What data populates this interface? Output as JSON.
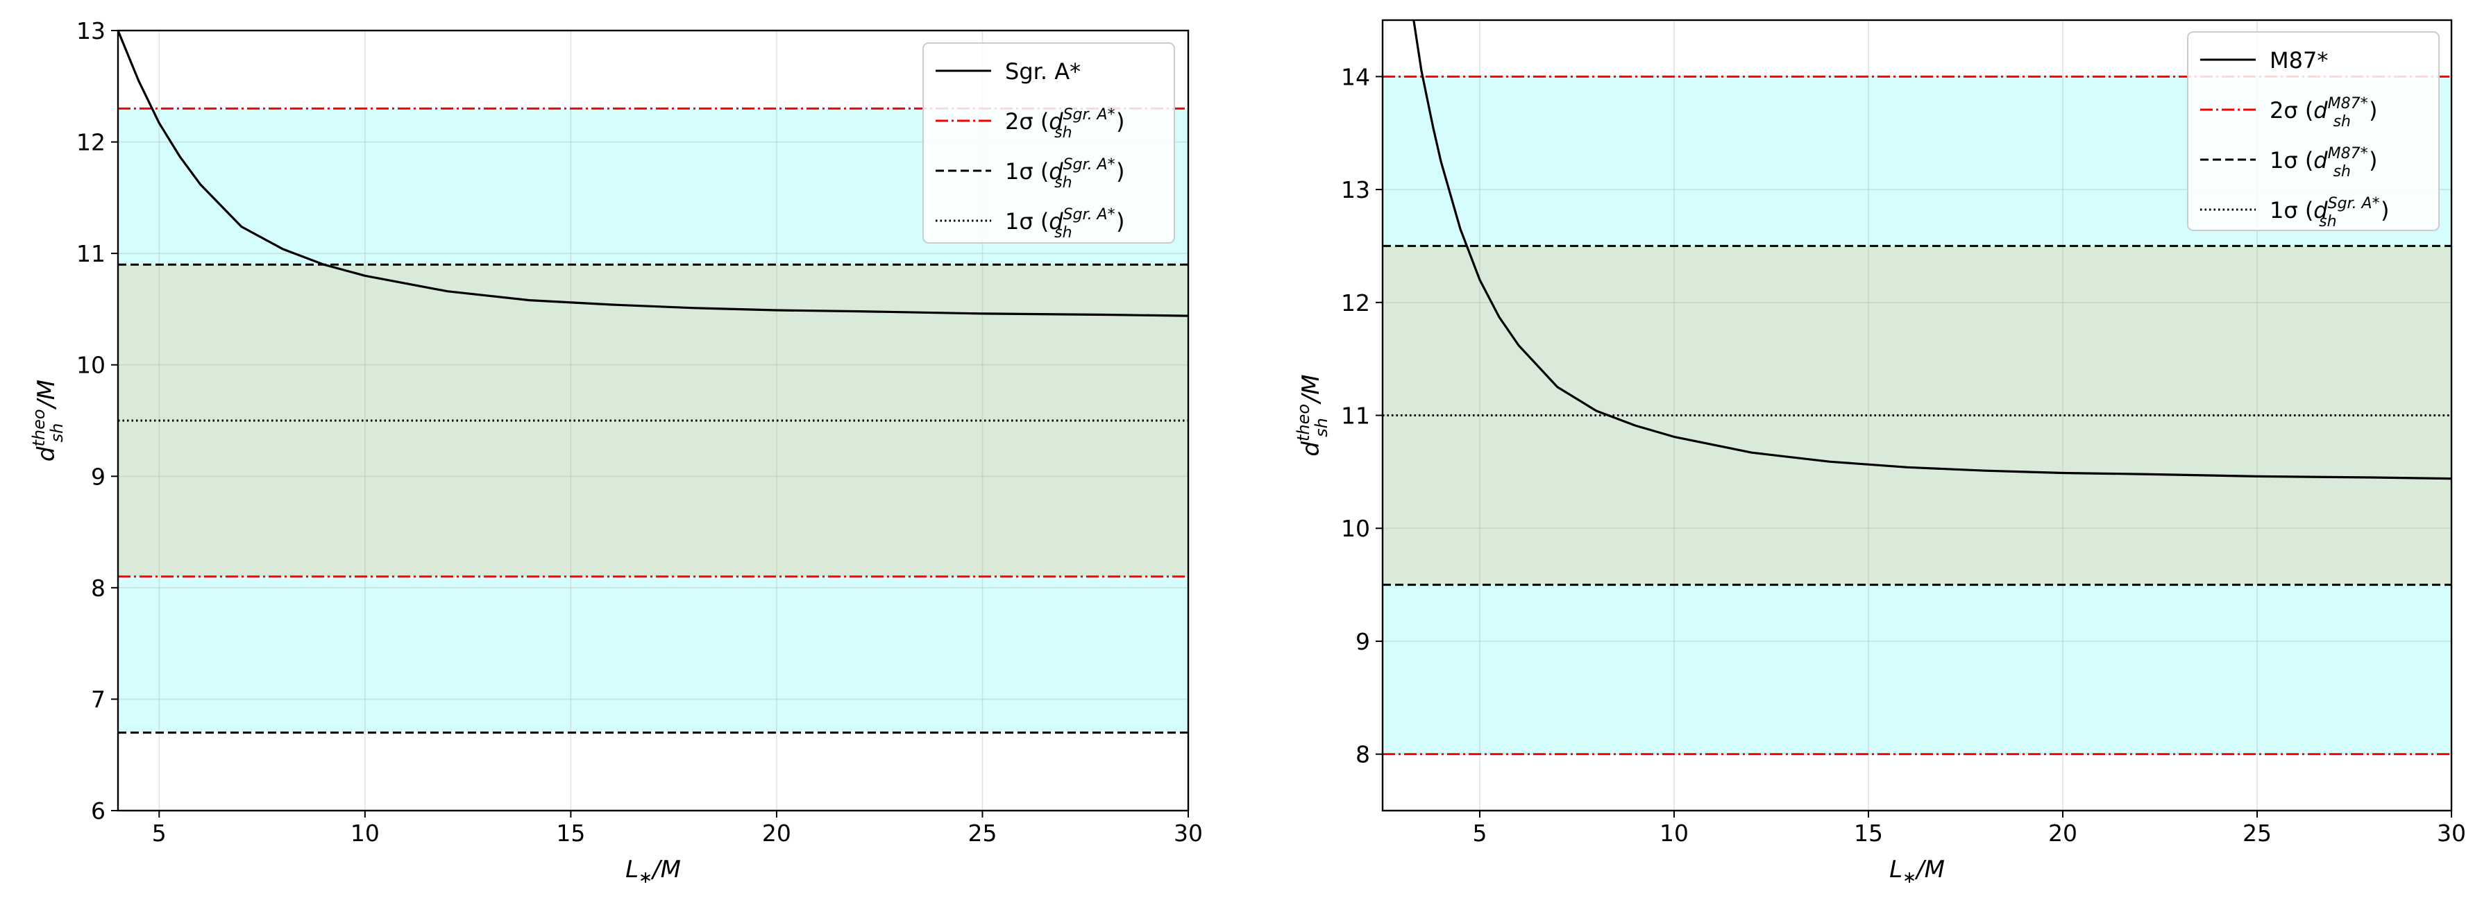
{
  "chart_data": [
    {
      "type": "line",
      "title": "",
      "xlabel": "L_*/M",
      "ylabel": "d_sh^theo/M",
      "xlim": [
        4,
        30
      ],
      "ylim": [
        6,
        13
      ],
      "xticks": [
        5,
        10,
        15,
        20,
        25,
        30
      ],
      "yticks": [
        6,
        7,
        8,
        9,
        10,
        11,
        12,
        13
      ],
      "grid": true,
      "legend_position": "top-right",
      "bands": [
        {
          "y0": 6.7,
          "y1": 12.3,
          "color": "#d6fdfd"
        },
        {
          "y0": 8.1,
          "y1": 10.9,
          "color": "#d9ebd8"
        }
      ],
      "hlines": [
        {
          "y": 12.3,
          "style": "dashdot",
          "color": "#ff0000"
        },
        {
          "y": 8.1,
          "style": "dashdot",
          "color": "#ff0000"
        },
        {
          "y": 10.9,
          "style": "dashed",
          "color": "#000000"
        },
        {
          "y": 6.7,
          "style": "dashed",
          "color": "#000000"
        },
        {
          "y": 9.5,
          "style": "dotted",
          "color": "#000000"
        }
      ],
      "series": [
        {
          "name": "Sgr. A*",
          "color": "#000000",
          "x": [
            4,
            4.5,
            5,
            5.5,
            6,
            7,
            8,
            9,
            10,
            12,
            14,
            16,
            18,
            20,
            22,
            25,
            28,
            30
          ],
          "y": [
            13.0,
            12.55,
            12.17,
            11.87,
            11.62,
            11.24,
            11.04,
            10.9,
            10.8,
            10.66,
            10.58,
            10.54,
            10.51,
            10.49,
            10.48,
            10.46,
            10.45,
            10.44
          ]
        }
      ],
      "legend": [
        {
          "style": "solid",
          "color": "#000000",
          "label": "Sgr. A*"
        },
        {
          "style": "dashdot",
          "color": "#ff0000",
          "sigma": "2σ",
          "sup": "Sgr. A*"
        },
        {
          "style": "dashed",
          "color": "#000000",
          "sigma": "1σ",
          "sup": "Sgr. A*"
        },
        {
          "style": "dotted",
          "color": "#000000",
          "sigma": "1σ",
          "sup": "Sgr. A*"
        }
      ]
    },
    {
      "type": "line",
      "title": "",
      "xlabel": "L_*/M",
      "ylabel": "d_sh^theo/M",
      "xlim": [
        2.5,
        30
      ],
      "ylim": [
        7.5,
        14.5
      ],
      "xticks": [
        5,
        10,
        15,
        20,
        25,
        30
      ],
      "yticks": [
        8,
        9,
        10,
        11,
        12,
        13,
        14
      ],
      "grid": true,
      "legend_position": "top-right",
      "bands": [
        {
          "y0": 8.0,
          "y1": 14.0,
          "color": "#d6fdfd"
        },
        {
          "y0": 9.5,
          "y1": 12.5,
          "color": "#d9ebd8"
        }
      ],
      "hlines": [
        {
          "y": 14.0,
          "style": "dashdot",
          "color": "#ff0000"
        },
        {
          "y": 8.0,
          "style": "dashdot",
          "color": "#ff0000"
        },
        {
          "y": 12.5,
          "style": "dashed",
          "color": "#000000"
        },
        {
          "y": 9.5,
          "style": "dashed",
          "color": "#000000"
        },
        {
          "y": 11.0,
          "style": "dotted",
          "color": "#000000"
        }
      ],
      "series": [
        {
          "name": "M87*",
          "color": "#000000",
          "x": [
            3.3,
            3.5,
            3.8,
            4,
            4.5,
            5,
            5.5,
            6,
            7,
            8,
            9,
            10,
            12,
            14,
            16,
            18,
            20,
            22,
            25,
            28,
            30
          ],
          "y": [
            14.5,
            14.05,
            13.55,
            13.25,
            12.65,
            12.2,
            11.87,
            11.62,
            11.25,
            11.04,
            10.91,
            10.81,
            10.67,
            10.59,
            10.54,
            10.51,
            10.49,
            10.48,
            10.46,
            10.45,
            10.44
          ]
        }
      ],
      "legend": [
        {
          "style": "solid",
          "color": "#000000",
          "label": "M87*"
        },
        {
          "style": "dashdot",
          "color": "#ff0000",
          "sigma": "2σ",
          "sup": "M87*"
        },
        {
          "style": "dashed",
          "color": "#000000",
          "sigma": "1σ",
          "sup": "M87*"
        },
        {
          "style": "dotted",
          "color": "#000000",
          "sigma": "1σ",
          "sup": "Sgr. A*"
        }
      ]
    }
  ]
}
